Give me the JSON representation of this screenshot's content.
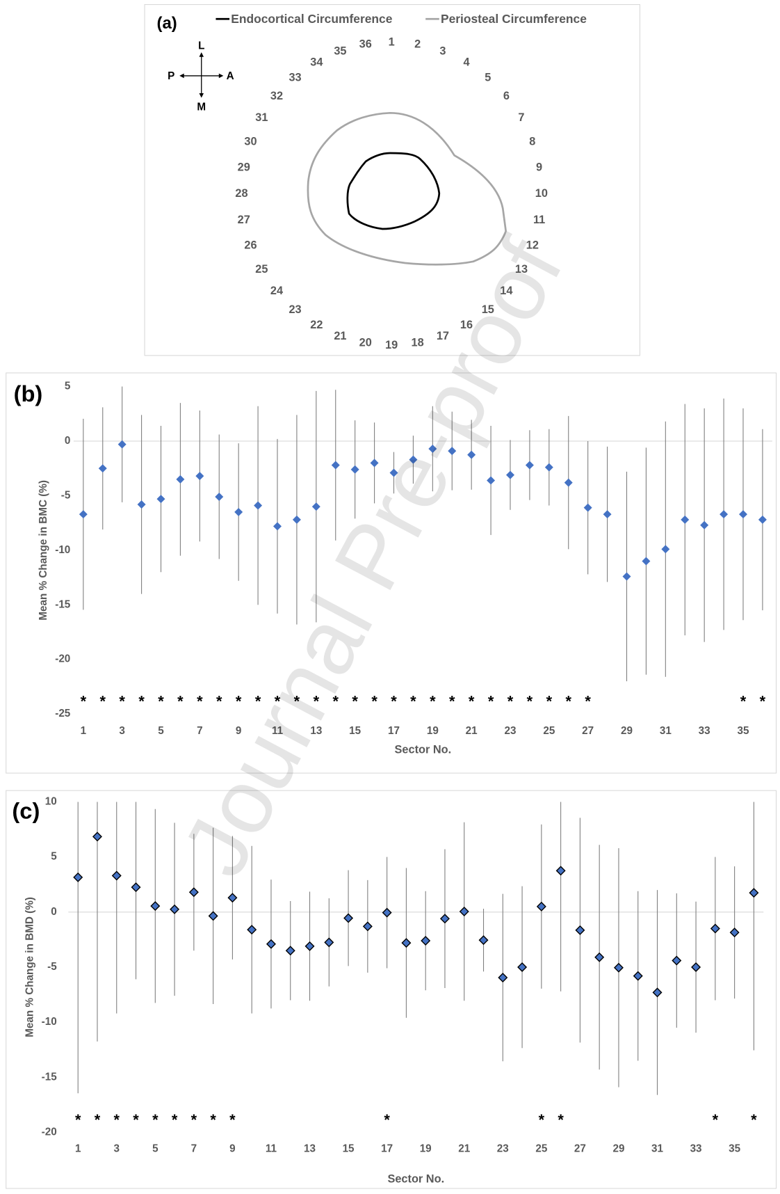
{
  "figure_a": {
    "panel_label": "(a)",
    "legend": [
      {
        "name": "Endocortical Circumference",
        "color": "#000000"
      },
      {
        "name": "Periosteal Circumference",
        "color": "#a6a6a6"
      }
    ],
    "compass": {
      "top": "L",
      "bottom": "M",
      "left": "P",
      "right": "A"
    },
    "sectors": [
      1,
      2,
      3,
      4,
      5,
      6,
      7,
      8,
      9,
      10,
      11,
      12,
      13,
      14,
      15,
      16,
      17,
      18,
      19,
      20,
      21,
      22,
      23,
      24,
      25,
      26,
      27,
      28,
      29,
      30,
      31,
      32,
      33,
      34,
      35,
      36
    ]
  },
  "chart_data": [
    {
      "type": "scatter",
      "panel_label": "(b)",
      "xlabel": "Sector No.",
      "ylabel": "Mean % Change in BMC (%)",
      "x": [
        1,
        2,
        3,
        4,
        5,
        6,
        7,
        8,
        9,
        10,
        11,
        12,
        13,
        14,
        15,
        16,
        17,
        18,
        19,
        20,
        21,
        22,
        23,
        24,
        25,
        26,
        27,
        28,
        29,
        30,
        31,
        32,
        33,
        34,
        35,
        36
      ],
      "values": [
        -6.7,
        -2.5,
        -0.3,
        -5.8,
        -5.3,
        -3.5,
        -3.2,
        -5.1,
        -6.5,
        -5.9,
        -7.8,
        -7.2,
        -6.0,
        -2.2,
        -2.6,
        -2.0,
        -2.9,
        -1.7,
        -0.7,
        -0.9,
        -1.25,
        -3.6,
        -3.1,
        -2.2,
        -2.4,
        -3.8,
        -6.1,
        -6.7,
        -12.4,
        -11.0,
        -9.9,
        -7.2,
        -7.7,
        -6.7,
        -6.7,
        -7.2
      ],
      "errors": [
        8.75,
        5.6,
        5.3,
        8.2,
        6.7,
        7.0,
        6.0,
        5.7,
        6.3,
        9.1,
        8.0,
        9.6,
        10.6,
        6.9,
        4.5,
        3.7,
        1.9,
        2.2,
        3.9,
        3.6,
        3.2,
        5.0,
        3.2,
        3.2,
        3.5,
        6.1,
        6.1,
        6.2,
        9.6,
        10.4,
        11.7,
        10.6,
        10.7,
        10.6,
        9.7,
        8.3
      ],
      "color": "#4472c4",
      "xlim": [
        0.5,
        36.5
      ],
      "xticks": [
        1,
        3,
        5,
        7,
        9,
        11,
        13,
        15,
        17,
        19,
        21,
        23,
        25,
        27,
        29,
        31,
        33,
        35
      ],
      "ylim": [
        -25,
        5
      ],
      "yticks": [
        -25,
        -20,
        -15,
        -10,
        -5,
        0,
        5
      ],
      "grid": false,
      "markers": {
        "text": "*",
        "x": [
          1,
          2,
          3,
          4,
          5,
          6,
          7,
          8,
          9,
          10,
          11,
          12,
          13,
          14,
          15,
          16,
          17,
          18,
          19,
          20,
          21,
          22,
          23,
          24,
          25,
          26,
          27,
          35,
          36
        ]
      }
    },
    {
      "type": "scatter",
      "panel_label": "(c)",
      "xlabel": "Sector No.",
      "ylabel": "Mean % Change in BMD (%)",
      "x": [
        1,
        2,
        3,
        4,
        5,
        6,
        7,
        8,
        9,
        10,
        11,
        12,
        13,
        14,
        15,
        16,
        17,
        18,
        19,
        20,
        21,
        22,
        23,
        24,
        25,
        26,
        27,
        28,
        29,
        30,
        31,
        32,
        33,
        34,
        35,
        36
      ],
      "values": [
        3.15,
        6.85,
        3.3,
        2.25,
        0.55,
        0.25,
        1.8,
        -0.35,
        1.3,
        -1.6,
        -2.9,
        -3.5,
        -3.1,
        -2.75,
        -0.55,
        -1.3,
        -0.05,
        -2.8,
        -2.6,
        -0.6,
        0.05,
        -2.55,
        -5.95,
        -5.0,
        0.5,
        3.75,
        -1.65,
        -4.1,
        -5.05,
        -5.8,
        -7.3,
        -4.4,
        -5.0,
        -1.5,
        -1.85,
        1.75
      ],
      "errors": [
        19.6,
        18.6,
        12.5,
        8.35,
        8.8,
        7.85,
        5.3,
        8.0,
        5.6,
        7.6,
        5.85,
        4.5,
        4.95,
        4.0,
        4.35,
        4.2,
        5.05,
        6.8,
        4.5,
        6.3,
        8.1,
        2.85,
        7.6,
        7.35,
        7.45,
        10.95,
        10.2,
        10.2,
        10.85,
        7.7,
        9.3,
        6.1,
        5.95,
        6.5,
        6.0,
        14.3
      ],
      "color": "#4472c4",
      "edge_color": "#000000",
      "xlim": [
        0.5,
        36.5
      ],
      "xticks": [
        1,
        3,
        5,
        7,
        9,
        11,
        13,
        15,
        17,
        19,
        21,
        23,
        25,
        27,
        29,
        31,
        33,
        35
      ],
      "ylim": [
        -20,
        10
      ],
      "yticks": [
        -20,
        -15,
        -10,
        -5,
        0,
        5,
        10
      ],
      "grid": false,
      "markers": {
        "text": "*",
        "x": [
          1,
          2,
          3,
          4,
          5,
          6,
          7,
          8,
          9,
          17,
          25,
          26,
          34,
          36
        ]
      }
    }
  ],
  "watermark": "Journal Pre-proof"
}
